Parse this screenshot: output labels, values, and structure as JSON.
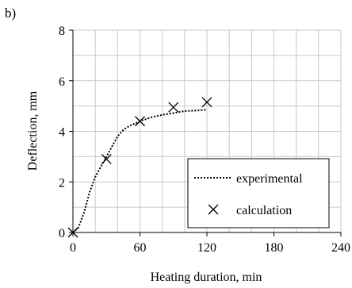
{
  "panel_label": "b)",
  "chart_data": {
    "type": "line",
    "title": "",
    "xlabel": "Heating duration, min",
    "ylabel": "Deflection, mm",
    "xlim": [
      0,
      240
    ],
    "ylim": [
      0,
      8
    ],
    "xticks": [
      0,
      60,
      120,
      180,
      240
    ],
    "yticks": [
      0,
      2,
      4,
      6,
      8
    ],
    "grid": true,
    "grid_minor_x_step": 20,
    "grid_minor_y_step": 1,
    "legend_position": "bottom-right",
    "series": [
      {
        "name": "experimental",
        "type": "line",
        "style": "dotted",
        "color": "#000000",
        "x": [
          0,
          5,
          10,
          15,
          20,
          25,
          30,
          35,
          40,
          45,
          50,
          55,
          60,
          70,
          80,
          90,
          100,
          110,
          120
        ],
        "y": [
          0,
          0.2,
          0.8,
          1.6,
          2.2,
          2.6,
          3.0,
          3.4,
          3.8,
          4.05,
          4.2,
          4.3,
          4.4,
          4.55,
          4.65,
          4.72,
          4.8,
          4.82,
          4.85
        ]
      },
      {
        "name": "calculation",
        "type": "scatter",
        "marker": "x",
        "color": "#000000",
        "x": [
          0,
          30,
          60,
          90,
          120
        ],
        "y": [
          0,
          2.9,
          4.4,
          4.95,
          5.15
        ]
      }
    ]
  }
}
